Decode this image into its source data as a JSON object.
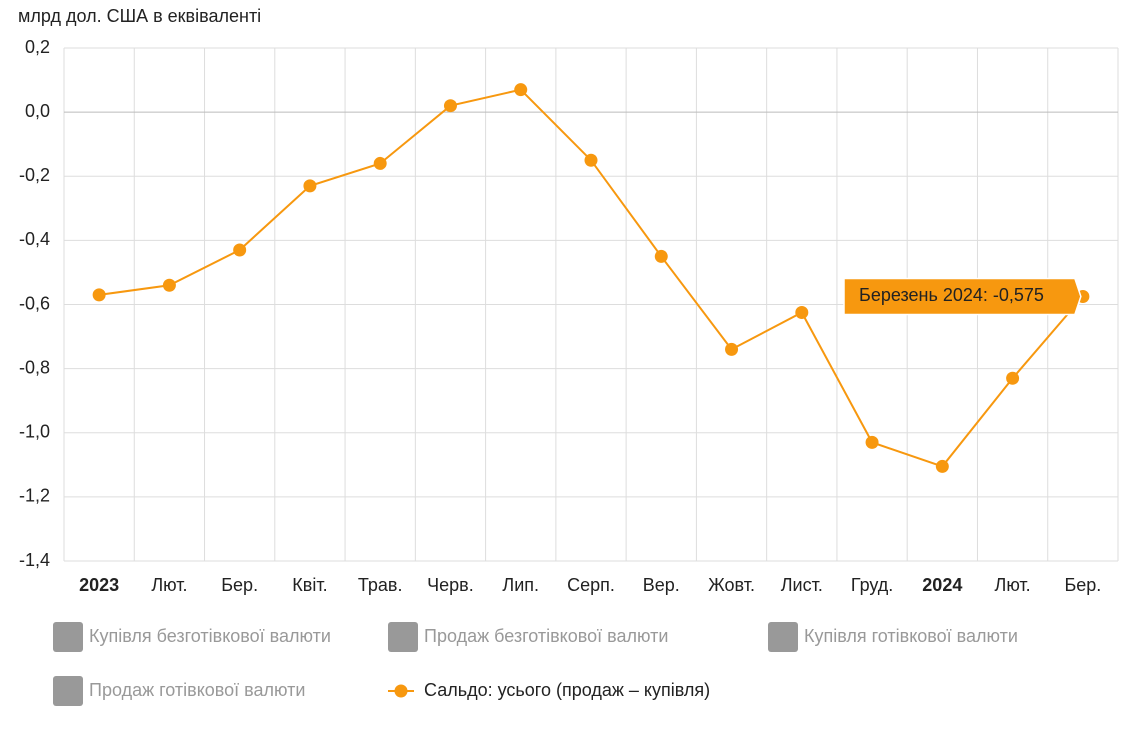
{
  "chart_data": {
    "type": "line",
    "y_label": "млрд дол. США в еквіваленті",
    "categories": [
      "2023",
      "Лют.",
      "Бер.",
      "Квіт.",
      "Трав.",
      "Черв.",
      "Лип.",
      "Серп.",
      "Вер.",
      "Жовт.",
      "Лист.",
      "Груд.",
      "2024",
      "Лют.",
      "Бер."
    ],
    "series": [
      {
        "name": "Сальдо: усього (продаж – купівля)",
        "color": "#f7980f",
        "values": [
          -0.57,
          -0.54,
          -0.43,
          -0.23,
          -0.16,
          0.02,
          0.07,
          -0.15,
          -0.45,
          -0.74,
          -0.625,
          -1.03,
          -1.105,
          -0.83,
          -0.575
        ]
      }
    ],
    "legend_hidden": [
      "Купівля безготівкової валюти",
      "Продаж безготівкової валюти",
      "Купівля готівкової валюти",
      "Продаж готівкової валюти"
    ],
    "annotation": "Березень 2024: -0,575",
    "ylim": [
      -1.4,
      0.2
    ],
    "yticks": [
      {
        "value": 0.2,
        "label": "0,2"
      },
      {
        "value": 0,
        "label": "0,0"
      },
      {
        "value": -0.2,
        "label": "-0,2"
      },
      {
        "value": -0.4,
        "label": "-0,4"
      },
      {
        "value": -0.6,
        "label": "-0,6"
      },
      {
        "value": -0.8,
        "label": "-0,8"
      },
      {
        "value": -1,
        "label": "-1,0"
      },
      {
        "value": -1.2,
        "label": "-1,2"
      },
      {
        "value": -1.4,
        "label": "-1,4"
      }
    ],
    "grid": true
  }
}
